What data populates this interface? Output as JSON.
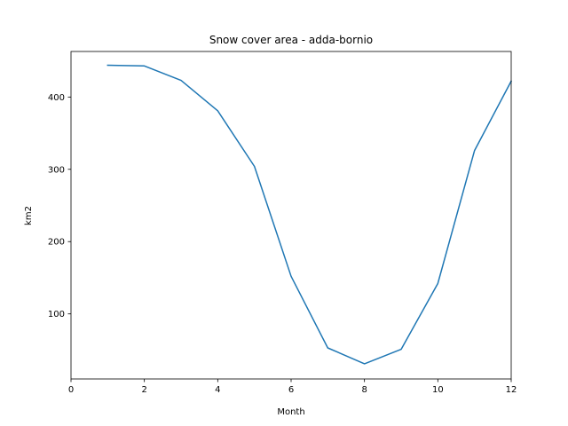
{
  "chart_data": {
    "type": "line",
    "title": "Snow cover area - adda-bornio",
    "xlabel": "Month",
    "ylabel": "km2",
    "xlim": [
      0,
      12
    ],
    "ylim": [
      10,
      463
    ],
    "xticks": [
      0,
      2,
      4,
      6,
      8,
      10,
      12
    ],
    "yticks": [
      100,
      200,
      300,
      400
    ],
    "grid": false,
    "series": [
      {
        "color": "#1f77b4",
        "x": [
          1,
          2,
          3,
          4,
          5,
          6,
          7,
          8,
          9,
          10,
          11,
          12
        ],
        "y": [
          444,
          443,
          423,
          381,
          304,
          152,
          53,
          31,
          51,
          142,
          326,
          422
        ]
      }
    ]
  }
}
